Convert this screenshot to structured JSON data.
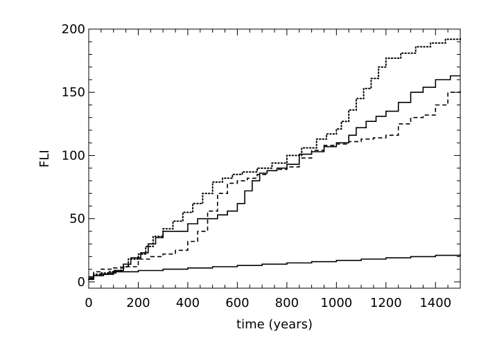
{
  "chart_data": {
    "type": "line",
    "title": "",
    "xlabel": "time (years)",
    "ylabel": "FLI",
    "xlim": [
      0,
      1500
    ],
    "ylim": [
      -5,
      200
    ],
    "x_ticks": [
      0,
      200,
      400,
      600,
      800,
      1000,
      1200,
      1400
    ],
    "y_ticks": [
      0,
      50,
      100,
      150,
      200
    ],
    "grid": false,
    "legend": "none",
    "series": [
      {
        "style": "dotted",
        "color": "#000000",
        "x": [
          0,
          20,
          50,
          80,
          100,
          130,
          160,
          200,
          230,
          260,
          300,
          340,
          380,
          420,
          460,
          500,
          540,
          580,
          620,
          680,
          740,
          800,
          860,
          920,
          960,
          1000,
          1020,
          1050,
          1080,
          1110,
          1140,
          1170,
          1200,
          1260,
          1320,
          1380,
          1440,
          1500
        ],
        "y": [
          2,
          6,
          7,
          8,
          9,
          12,
          18,
          22,
          28,
          36,
          42,
          48,
          55,
          62,
          70,
          79,
          82,
          85,
          87,
          90,
          94,
          100,
          106,
          113,
          117,
          121,
          127,
          136,
          145,
          153,
          161,
          170,
          177,
          181,
          186,
          189,
          192,
          193
        ]
      },
      {
        "style": "solid",
        "color": "#000000",
        "x": [
          0,
          20,
          50,
          80,
          110,
          140,
          170,
          210,
          240,
          270,
          300,
          330,
          350,
          400,
          440,
          480,
          520,
          560,
          600,
          630,
          660,
          690,
          720,
          760,
          800,
          850,
          900,
          950,
          1000,
          1050,
          1080,
          1120,
          1160,
          1200,
          1250,
          1300,
          1350,
          1400,
          1440,
          1460,
          1500
        ],
        "y": [
          2,
          5,
          6,
          7,
          9,
          14,
          19,
          23,
          30,
          35,
          40,
          40,
          40,
          46,
          50,
          50,
          53,
          56,
          62,
          72,
          80,
          86,
          88,
          90,
          93,
          101,
          103,
          107,
          110,
          116,
          122,
          127,
          131,
          135,
          142,
          150,
          154,
          160,
          160,
          163,
          163
        ]
      },
      {
        "style": "dashed",
        "color": "#000000",
        "x": [
          0,
          20,
          50,
          100,
          150,
          200,
          250,
          300,
          350,
          400,
          440,
          480,
          520,
          560,
          600,
          640,
          680,
          720,
          760,
          800,
          850,
          900,
          950,
          1000,
          1050,
          1100,
          1150,
          1200,
          1250,
          1300,
          1350,
          1400,
          1450,
          1500
        ],
        "y": [
          3,
          8,
          10,
          11,
          12,
          18,
          20,
          22,
          25,
          32,
          40,
          56,
          70,
          78,
          80,
          82,
          85,
          88,
          89,
          91,
          98,
          104,
          108,
          109,
          111,
          113,
          114,
          116,
          125,
          130,
          132,
          140,
          150,
          153
        ]
      },
      {
        "style": "solid",
        "color": "#000000",
        "x": [
          0,
          20,
          60,
          100,
          200,
          300,
          400,
          500,
          600,
          700,
          800,
          900,
          1000,
          1100,
          1200,
          1300,
          1400,
          1500
        ],
        "y": [
          4,
          5,
          6,
          8,
          9,
          10,
          11,
          12,
          13,
          14,
          15,
          16,
          17,
          18,
          19,
          20,
          21,
          22
        ]
      }
    ]
  }
}
